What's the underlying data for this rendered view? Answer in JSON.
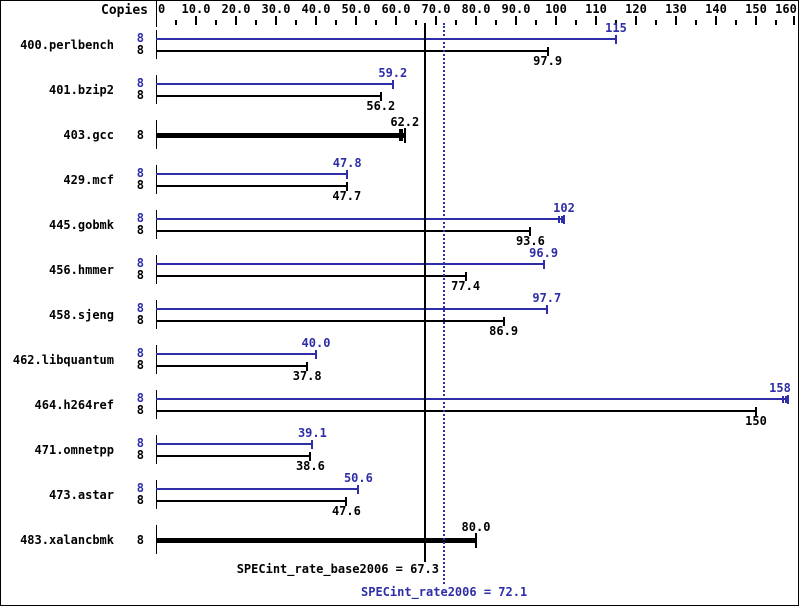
{
  "header": {
    "copies_label": "Copies"
  },
  "colors": {
    "peak": "#2e2ea8",
    "base": "#000000"
  },
  "chart_data": {
    "type": "bar",
    "orientation": "horizontal",
    "title": "",
    "xlabel": "",
    "ylabel": "Copies",
    "xlim": [
      0,
      160
    ],
    "x_major_tick": 10,
    "x_minor_tick": 5,
    "grid": false,
    "x_tick_labels": [
      "0",
      "10.0",
      "20.0",
      "30.0",
      "40.0",
      "50.0",
      "60.0",
      "70.0",
      "80.0",
      "90.0",
      "100",
      "110",
      "120",
      "130",
      "140",
      "150",
      "160"
    ],
    "series": [
      {
        "name": "peak (SPECint_rate2006)",
        "color": "#2e2ea8"
      },
      {
        "name": "base (SPECint_rate_base2006)",
        "color": "#000000"
      }
    ],
    "benchmarks": [
      {
        "name": "400.perlbench",
        "copies": 8,
        "peak": 115,
        "peak_label": "115",
        "base": 97.9,
        "base_label": "97.9"
      },
      {
        "name": "401.bzip2",
        "copies": 8,
        "peak": 59.2,
        "peak_label": "59.2",
        "base": 56.2,
        "base_label": "56.2"
      },
      {
        "name": "403.gcc",
        "copies": 8,
        "single": true,
        "base": 62.2,
        "base_label": "62.2",
        "run_marks": true
      },
      {
        "name": "429.mcf",
        "copies": 8,
        "peak": 47.8,
        "peak_label": "47.8",
        "base": 47.7,
        "base_label": "47.7"
      },
      {
        "name": "445.gobmk",
        "copies": 8,
        "peak": 102,
        "peak_label": "102",
        "base": 93.6,
        "base_label": "93.6",
        "run_marks": true
      },
      {
        "name": "456.hmmer",
        "copies": 8,
        "peak": 96.9,
        "peak_label": "96.9",
        "base": 77.4,
        "base_label": "77.4"
      },
      {
        "name": "458.sjeng",
        "copies": 8,
        "peak": 97.7,
        "peak_label": "97.7",
        "base": 86.9,
        "base_label": "86.9"
      },
      {
        "name": "462.libquantum",
        "copies": 8,
        "peak": 40.0,
        "peak_label": "40.0",
        "base": 37.8,
        "base_label": "37.8"
      },
      {
        "name": "464.h264ref",
        "copies": 8,
        "peak": 158,
        "peak_label": "158",
        "base": 150,
        "base_label": "150",
        "run_marks": true
      },
      {
        "name": "471.omnetpp",
        "copies": 8,
        "peak": 39.1,
        "peak_label": "39.1",
        "base": 38.6,
        "base_label": "38.6"
      },
      {
        "name": "473.astar",
        "copies": 8,
        "peak": 50.6,
        "peak_label": "50.6",
        "base": 47.6,
        "base_label": "47.6"
      },
      {
        "name": "483.xalancbmk",
        "copies": 8,
        "single": true,
        "base": 80.0,
        "base_label": "80.0"
      }
    ],
    "means": {
      "base": {
        "label": "SPECint_rate_base2006 = 67.3",
        "value": 67.3
      },
      "peak": {
        "label": "SPECint_rate2006 = 72.1",
        "value": 72.1
      }
    }
  }
}
